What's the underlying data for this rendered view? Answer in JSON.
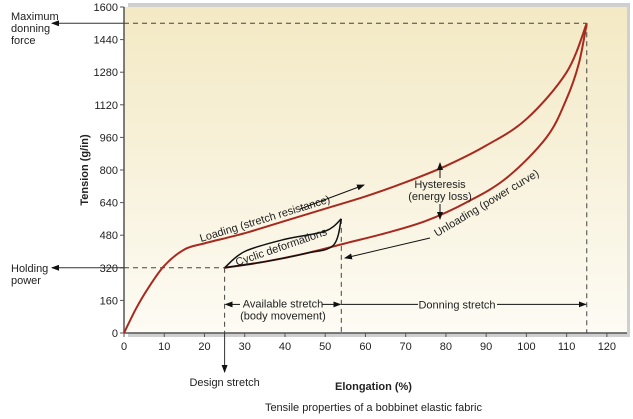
{
  "chart_data": {
    "type": "line",
    "title": "Tensile properties of a bobbinet elastic fabric",
    "xlabel": "Elongation (%)",
    "ylabel": "Tension (g/in)",
    "xlim": [
      0,
      125
    ],
    "ylim": [
      0,
      1600
    ],
    "xticks": [
      0,
      10,
      20,
      30,
      40,
      50,
      60,
      70,
      80,
      90,
      100,
      110,
      120
    ],
    "yticks": [
      0,
      160,
      320,
      480,
      640,
      800,
      960,
      1120,
      1280,
      1440,
      1600
    ],
    "grid": false,
    "series": [
      {
        "name": "Loading (stretch resistance)",
        "color": "#a8291f",
        "x": [
          0,
          3,
          6,
          10,
          15,
          20,
          30,
          40,
          50,
          60,
          70,
          80,
          90,
          100,
          110,
          115
        ],
        "y": [
          0,
          120,
          220,
          330,
          410,
          440,
          490,
          550,
          610,
          670,
          740,
          820,
          920,
          1050,
          1280,
          1520
        ]
      },
      {
        "name": "Unloading (power curve)",
        "color": "#a8291f",
        "x": [
          25,
          35,
          45,
          55,
          65,
          75,
          85,
          95,
          105,
          110,
          113,
          115
        ],
        "y": [
          320,
          350,
          390,
          440,
          490,
          550,
          640,
          760,
          960,
          1150,
          1320,
          1520
        ]
      },
      {
        "name": "Cyclic deformations (loading)",
        "color": "#111111",
        "x": [
          25,
          30,
          40,
          50,
          54
        ],
        "y": [
          320,
          400,
          460,
          500,
          560
        ]
      },
      {
        "name": "Cyclic deformations (unloading)",
        "color": "#111111",
        "x": [
          25,
          35,
          45,
          52,
          54
        ],
        "y": [
          320,
          350,
          390,
          430,
          560
        ]
      }
    ],
    "reference_lines": {
      "max_force": 1520,
      "holding_power": 320,
      "design_stretch": 25,
      "available_end": 54,
      "max_stretch": 115
    },
    "annotations": {
      "max_force": "Maximum donning force",
      "holding": "Holding power",
      "design": "Design stretch",
      "loading": "Loading (stretch resistance)",
      "unloading": "Unloading (power curve)",
      "cyclic": "Cyclic deformations",
      "hysteresis_1": "Hysteresis",
      "hysteresis_2": "(energy loss)",
      "available_1": "Available stretch",
      "available_2": "(body movement)",
      "donning": "Donning stretch"
    },
    "legend": "none"
  },
  "labels": {
    "max_force_lines": [
      "Maximum",
      "donning",
      "force"
    ],
    "holding_lines": [
      "Holding",
      "power"
    ]
  }
}
